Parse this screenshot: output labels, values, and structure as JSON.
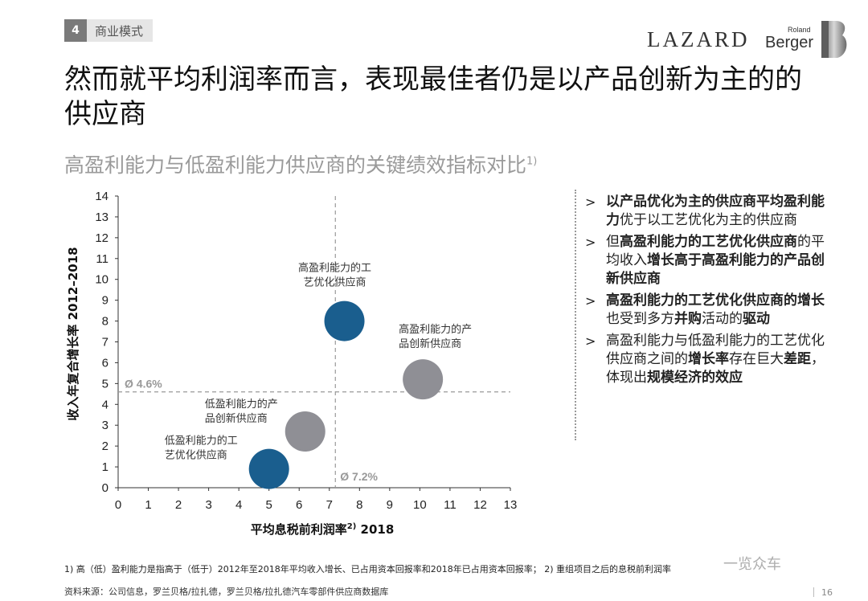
{
  "header": {
    "section_number": "4",
    "section_label": "商业模式",
    "logo_lazard": "LAZARD",
    "logo_rb_small": "Roland",
    "logo_rb_big": "Berger"
  },
  "title": "然而就平均利润率而言，表现最佳者仍是以产品创新为主的的供应商",
  "subtitle": "高盈利能力与低盈利能力供应商的关键绩效指标对比",
  "subtitle_sup": "1)",
  "chart_data": {
    "type": "scatter",
    "title": "",
    "xlabel": "平均息税前利润率",
    "xlabel_sup": "2)",
    "xlabel_year": " 2018",
    "ylabel": "收入年复合增长率 2012–2018",
    "xlim": [
      0,
      13
    ],
    "ylim": [
      0,
      14
    ],
    "xticks": [
      "0",
      "1",
      "2",
      "3",
      "4",
      "5",
      "6",
      "7",
      "8",
      "9",
      "10",
      "11",
      "12",
      "13"
    ],
    "yticks": [
      "0",
      "1",
      "2",
      "3",
      "4",
      "5",
      "6",
      "7",
      "8",
      "9",
      "10",
      "11",
      "12",
      "13",
      "14"
    ],
    "grid": false,
    "reference_lines": [
      {
        "axis": "y",
        "value": 4.6,
        "label": "Ø 4.6%"
      },
      {
        "axis": "x",
        "value": 7.2,
        "label": "Ø 7.2%"
      }
    ],
    "points": [
      {
        "label": [
          "高盈利能力的工",
          "艺优化供应商"
        ],
        "x": 7.5,
        "y": 8.0,
        "color": "#1a5e8e"
      },
      {
        "label": [
          "高盈利能力的产",
          "品创新供应商"
        ],
        "x": 10.1,
        "y": 5.2,
        "color": "#8f8f95"
      },
      {
        "label": [
          "低盈利能力的产",
          "品创新供应商"
        ],
        "x": 6.2,
        "y": 2.7,
        "color": "#8f8f95"
      },
      {
        "label": [
          "低盈利能力的工",
          "艺优化供应商"
        ],
        "x": 5.0,
        "y": 0.9,
        "color": "#1a5e8e"
      }
    ]
  },
  "bullets": [
    [
      {
        "t": "以产品优化为主的供应商平均盈利能力",
        "b": true
      },
      {
        "t": "优于以工艺优化为主的供应商",
        "b": false
      }
    ],
    [
      {
        "t": "但",
        "b": false
      },
      {
        "t": "高盈利能力的工艺优化供应商",
        "b": true
      },
      {
        "t": "的平均收入",
        "b": false
      },
      {
        "t": "增长高于高盈利能力的产品创新供应商",
        "b": true
      }
    ],
    [
      {
        "t": "高盈利能力的工艺优化供应商的增长",
        "b": true
      },
      {
        "t": "也受到多方",
        "b": false
      },
      {
        "t": "并购",
        "b": true
      },
      {
        "t": "活动的",
        "b": false
      },
      {
        "t": "驱动",
        "b": true
      }
    ],
    [
      {
        "t": "高盈利能力与低盈利能力的工艺优化供应商之间的",
        "b": false
      },
      {
        "t": "增长率",
        "b": true
      },
      {
        "t": "存在巨大",
        "b": false
      },
      {
        "t": "差距",
        "b": true
      },
      {
        "t": "，体现出",
        "b": false
      },
      {
        "t": "规模经济的效应",
        "b": true
      }
    ]
  ],
  "bullet_marker": ">",
  "footnote": "1) 高（低）盈利能力是指高于（低于）2012年至2018年平均收入增长、已占用资本回报率和2018年已占用资本回报率； 2) 重组项目之后的息税前利润率",
  "source": "资料来源：公司信息，罗兰贝格/拉扎德，罗兰贝格/拉扎德汽车零部件供应商数据库",
  "watermark": "一览众车",
  "page_number": "16"
}
